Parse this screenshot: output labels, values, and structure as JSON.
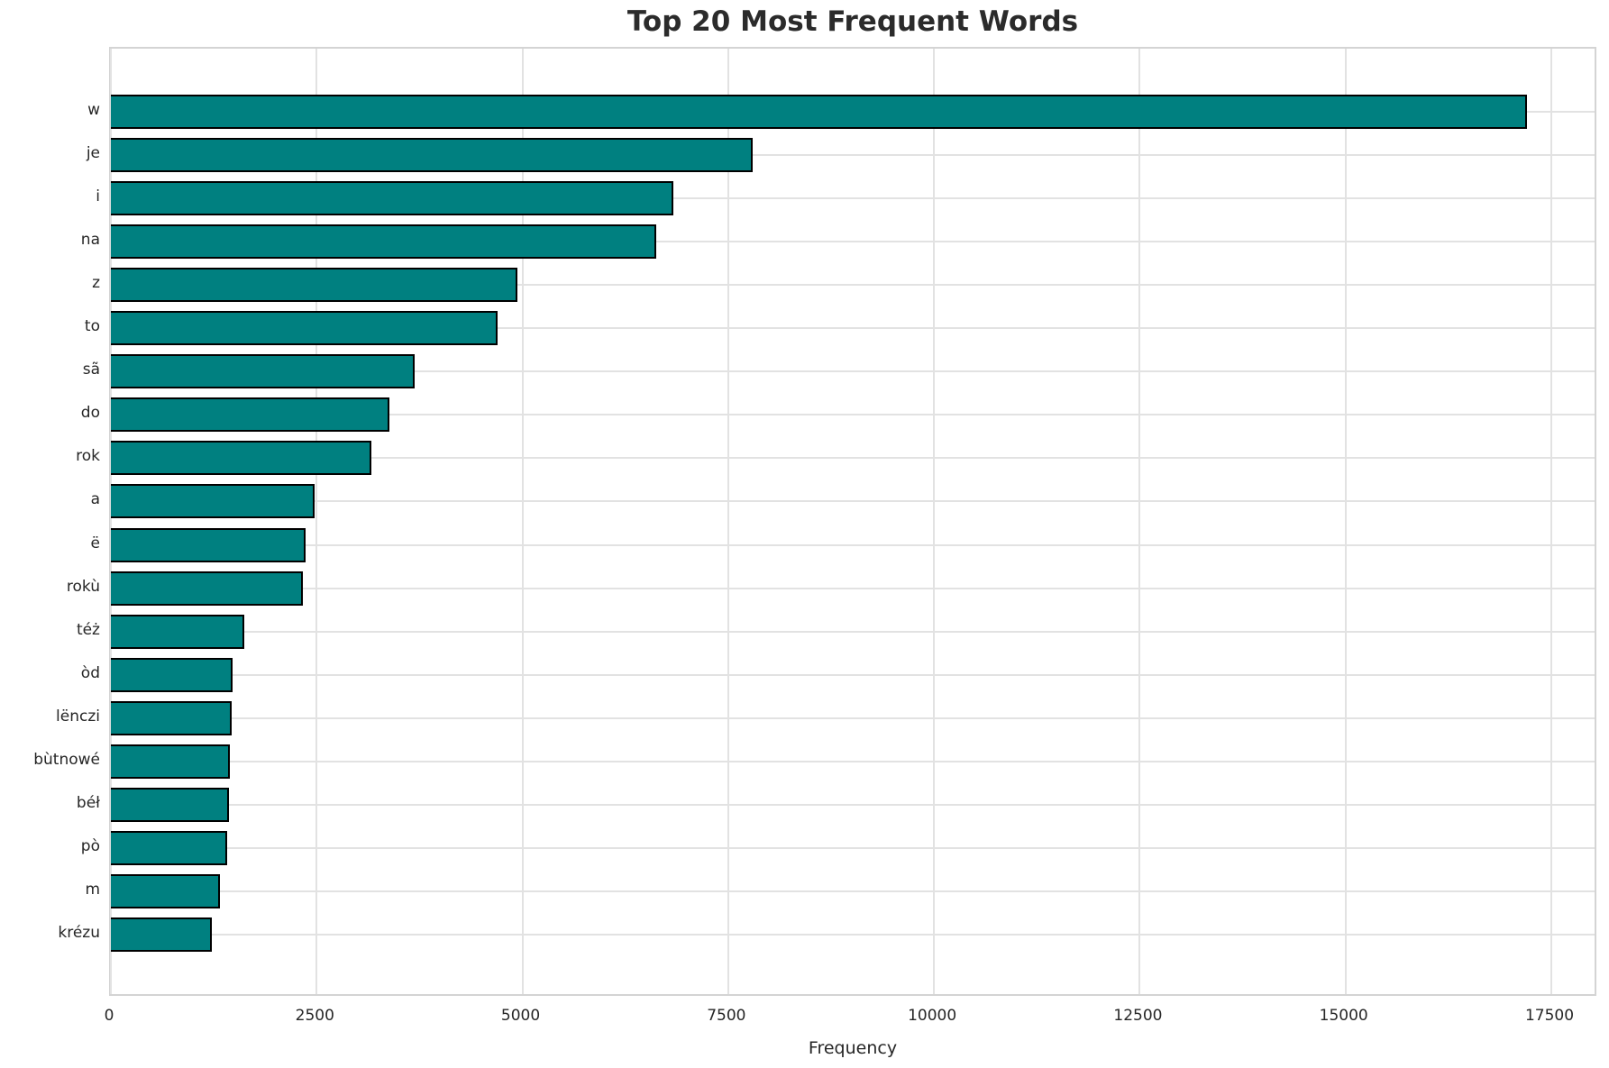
{
  "chart_data": {
    "type": "bar",
    "orientation": "horizontal",
    "title": "Top 20 Most Frequent Words",
    "xlabel": "Frequency",
    "ylabel": "",
    "categories": [
      "w",
      "je",
      "i",
      "na",
      "z",
      "to",
      "sã",
      "do",
      "rok",
      "a",
      "ë",
      "rokù",
      "téż",
      "òd",
      "lënczi",
      "bùtnowé",
      "béł",
      "pò",
      "m",
      "krézu"
    ],
    "values": [
      17200,
      7800,
      6830,
      6630,
      4940,
      4700,
      3690,
      3380,
      3170,
      2480,
      2370,
      2330,
      1620,
      1480,
      1470,
      1450,
      1430,
      1410,
      1330,
      1230
    ],
    "xticks": [
      0,
      2500,
      5000,
      7500,
      10000,
      12500,
      15000,
      17500
    ],
    "xlim": [
      0,
      18070
    ],
    "grid": true,
    "legend_position": "none",
    "bar_color": "#008080",
    "bar_edge_color": "#000000",
    "grid_color": "#e2e2e2",
    "spine_color": "#d4d4d4",
    "text_color": "#262626"
  }
}
